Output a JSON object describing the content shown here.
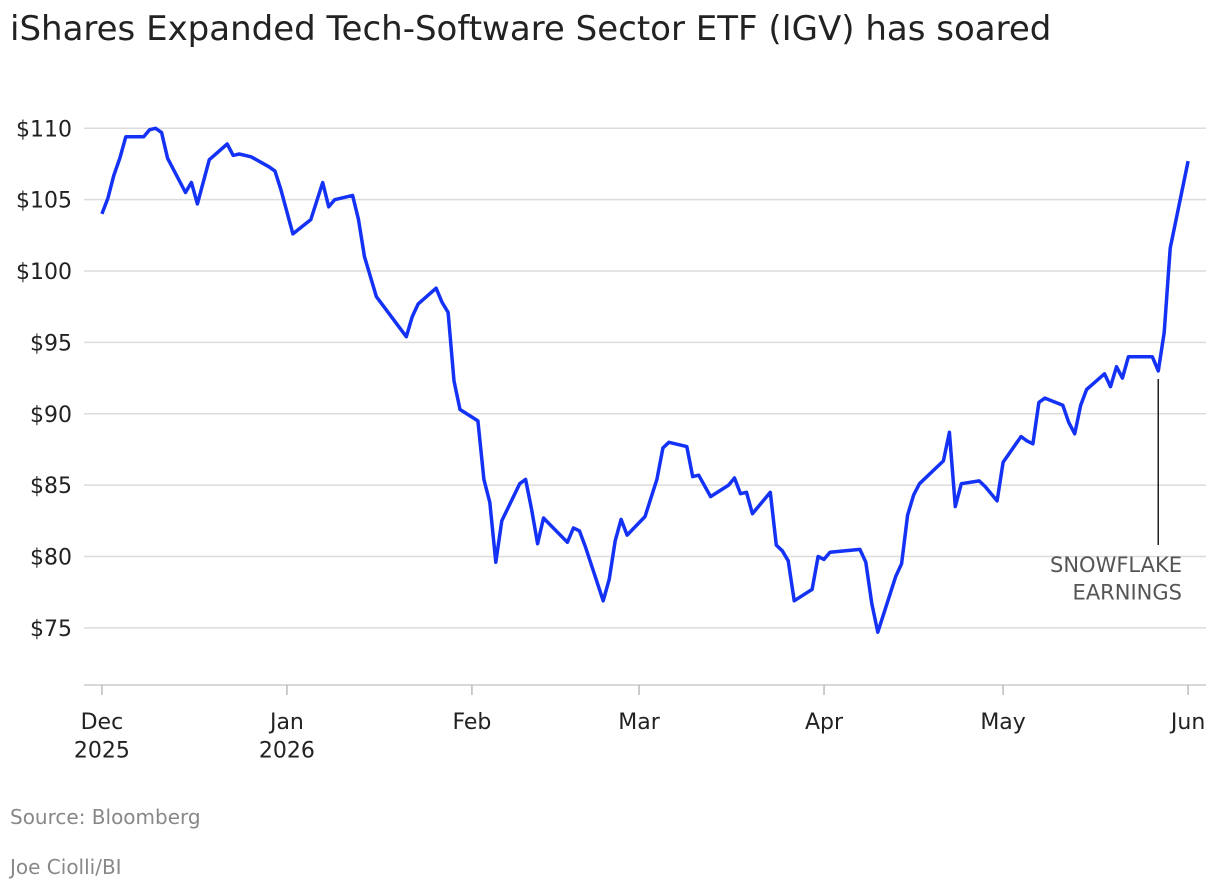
{
  "chart_data": {
    "type": "line",
    "title": "iShares Expanded Tech-Software Sector ETF (IGV) has soared",
    "source": "Source: Bloomberg",
    "credit": "Joe Ciolli/BI",
    "xlim": [
      -3,
      185
    ],
    "xticks": [
      {
        "value": 0,
        "label": [
          "Dec",
          "2025"
        ]
      },
      {
        "value": 31,
        "label": [
          "Jan",
          "2026"
        ]
      },
      {
        "value": 62,
        "label": [
          "Feb"
        ]
      },
      {
        "value": 90,
        "label": [
          "Mar"
        ]
      },
      {
        "value": 121,
        "label": [
          "Apr"
        ]
      },
      {
        "value": 151,
        "label": [
          "May"
        ]
      },
      {
        "value": 182,
        "label": [
          "Jun"
        ]
      }
    ],
    "ylim": [
      71,
      111
    ],
    "yticks": [
      {
        "value": 75,
        "label": "$75"
      },
      {
        "value": 80,
        "label": "$80"
      },
      {
        "value": 85,
        "label": "$85"
      },
      {
        "value": 90,
        "label": "$90"
      },
      {
        "value": 95,
        "label": "$95"
      },
      {
        "value": 100,
        "label": "$100"
      },
      {
        "value": 105,
        "label": "$105"
      },
      {
        "value": 110,
        "label": "$110"
      }
    ],
    "grid": true,
    "series": [
      {
        "name": "IGV",
        "color": "#1432f5",
        "x": [
          0,
          1,
          2,
          3,
          4,
          7,
          8,
          9,
          10,
          11,
          14,
          15,
          16,
          18,
          21,
          22,
          23,
          25,
          28,
          29,
          30,
          32,
          35,
          37,
          38,
          39,
          42,
          43,
          44,
          46,
          51,
          52,
          53,
          56,
          57,
          58,
          59,
          60,
          63,
          64,
          65,
          66,
          67,
          70,
          71,
          72,
          73,
          74,
          78,
          79,
          80,
          81,
          84,
          85,
          86,
          87,
          88,
          91,
          93,
          94,
          95,
          98,
          99,
          100,
          102,
          105,
          106,
          107,
          108,
          109,
          112,
          113,
          114,
          115,
          116,
          119,
          120,
          121,
          122,
          127,
          128,
          129,
          130,
          133,
          134,
          135,
          136,
          137,
          141,
          142,
          143,
          144,
          147,
          148,
          150,
          151,
          154,
          155,
          156,
          157,
          158,
          161,
          162,
          163,
          164,
          165,
          168,
          169,
          170,
          171,
          172,
          176,
          177,
          178,
          179,
          182
        ],
        "values": [
          104.0,
          105.1,
          106.7,
          107.9,
          109.4,
          109.4,
          109.9,
          110.0,
          109.7,
          107.9,
          105.5,
          106.2,
          104.7,
          107.8,
          108.9,
          108.1,
          108.2,
          108.0,
          107.3,
          107.0,
          105.7,
          102.6,
          103.6,
          106.2,
          104.5,
          105.0,
          105.3,
          103.6,
          101.0,
          98.2,
          95.4,
          96.8,
          97.7,
          98.8,
          97.8,
          97.1,
          92.3,
          90.3,
          89.5,
          85.4,
          83.8,
          79.6,
          82.5,
          85.1,
          85.4,
          83.3,
          80.9,
          82.7,
          81.0,
          82.0,
          81.8,
          80.7,
          76.9,
          78.4,
          81.1,
          82.6,
          81.5,
          82.8,
          85.4,
          87.6,
          88.0,
          87.7,
          85.6,
          85.7,
          84.2,
          85.0,
          85.5,
          84.4,
          84.5,
          83.0,
          84.5,
          80.8,
          80.4,
          79.7,
          76.9,
          77.7,
          80.0,
          79.8,
          80.3,
          80.5,
          79.6,
          76.7,
          74.7,
          78.6,
          79.5,
          82.9,
          84.3,
          85.1,
          86.7,
          88.7,
          83.5,
          85.1,
          85.3,
          84.9,
          83.9,
          86.6,
          88.4,
          88.1,
          87.9,
          90.8,
          91.1,
          90.6,
          89.4,
          88.6,
          90.6,
          91.7,
          92.8,
          91.9,
          93.3,
          92.5,
          94.0,
          94.0,
          93.0,
          95.7,
          101.6,
          107.7
        ]
      }
    ],
    "annotation": {
      "text": [
        "SNOWFLAKE",
        "EARNINGS"
      ],
      "x": 177
    }
  }
}
